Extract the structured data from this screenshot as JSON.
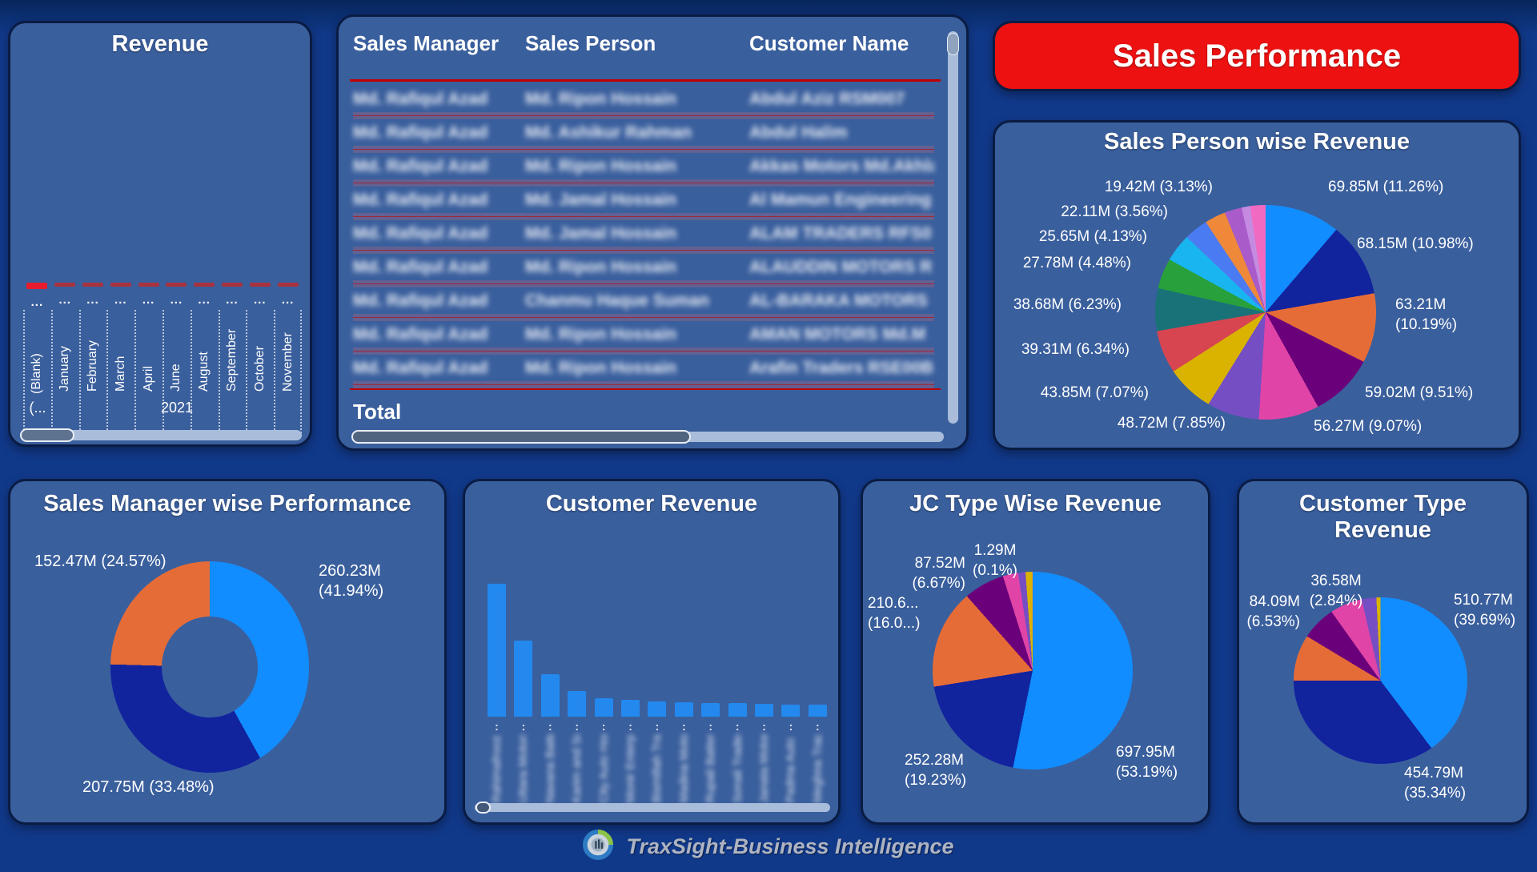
{
  "banner": {
    "title": "Sales Performance"
  },
  "footer": {
    "brand": "TraxSight-Business Intelligence"
  },
  "revenue_panel": {
    "title": "Revenue",
    "year_group_truncated": "(...",
    "year_label": "2021"
  },
  "sales_table": {
    "headers": [
      "Sales Manager",
      "Sales Person",
      "Customer Name"
    ],
    "total_label": "Total",
    "privacy_blurred": true,
    "rows": [
      [
        "Md. Rafiqul Azad",
        "Md. Ripon Hossain",
        "Abdul Aziz RSM007"
      ],
      [
        "Md. Rafiqul Azad",
        "Md. Ashikur Rahman",
        "Abdul Halim"
      ],
      [
        "Md. Rafiqul Azad",
        "Md. Ripon Hossain",
        "Akkas Motors Md.Akhla"
      ],
      [
        "Md. Rafiqul Azad",
        "Md. Jamal Hossain",
        "Al Mamun Engineering"
      ],
      [
        "Md. Rafiqul Azad",
        "Md. Jamal Hossain",
        "ALAM TRADERS RFS0"
      ],
      [
        "Md. Rafiqul Azad",
        "Md. Ripon Hossain",
        "ALAUDDIN MOTORS R"
      ],
      [
        "Md. Rafiqul Azad",
        "Chanmu Haque Suman",
        "AL-BARAKA MOTORS"
      ],
      [
        "Md. Rafiqul Azad",
        "Md. Ripon Hossain",
        "AMAN MOTORS Md.M"
      ],
      [
        "Md. Rafiqul Azad",
        "Md. Ripon Hossain",
        "Arafin Traders RSE00B"
      ]
    ]
  },
  "colors": {
    "page_bg": "#11398A",
    "panel_bg": "#3A5F9D",
    "panel_border": "#0A1C44",
    "banner_red": "#EE1111",
    "bar_blue": "#2389EF",
    "target_red": "#E81C2C",
    "target_red_dim": "#A8333E",
    "scroll_track": "#A9BDDB",
    "scroll_thumb": "#5E7390",
    "table_band": "#6A6191",
    "table_red_line": "#C00000"
  },
  "chart_data": {
    "revenue_by_month": {
      "type": "bar",
      "title": "Revenue",
      "categories": [
        "(Blank)",
        "January",
        "February",
        "March",
        "April",
        "June",
        "August",
        "September",
        "October",
        "November"
      ],
      "values_display": [
        "...",
        "...",
        "...",
        "...",
        "...",
        "...",
        "...",
        "...",
        "...",
        "..."
      ],
      "year": "2021",
      "note": "values truncated; red target dashes shown per month"
    },
    "sales_person_pie": {
      "type": "pie",
      "title": "Sales Person wise Revenue",
      "slices": [
        {
          "pct": 11.26,
          "color": "#118DFF",
          "label_lines": [
            "69.85M (11.26%)"
          ]
        },
        {
          "pct": 10.98,
          "color": "#12239E",
          "label_lines": [
            "68.15M (10.98%)"
          ]
        },
        {
          "pct": 10.19,
          "color": "#E66C37",
          "label_lines": [
            "63.21M",
            "(10.19%)"
          ]
        },
        {
          "pct": 9.51,
          "color": "#6B007B",
          "label_lines": [
            "59.02M (9.51%)"
          ]
        },
        {
          "pct": 9.07,
          "color": "#E044A7",
          "label_lines": [
            "56.27M (9.07%)"
          ]
        },
        {
          "pct": 7.85,
          "color": "#744EC2",
          "label_lines": [
            "48.72M (7.85%)"
          ]
        },
        {
          "pct": 7.07,
          "color": "#D9B300",
          "label_lines": [
            "43.85M (7.07%)"
          ]
        },
        {
          "pct": 6.34,
          "color": "#D64550",
          "label_lines": [
            "39.31M (6.34%)"
          ]
        },
        {
          "pct": 6.23,
          "color": "#197278",
          "label_lines": [
            "38.68M (6.23%)"
          ]
        },
        {
          "pct": 4.48,
          "color": "#28A03C",
          "label_lines": [
            "27.78M (4.48%)"
          ]
        },
        {
          "pct": 4.13,
          "color": "#19B5F0",
          "label_lines": [
            "25.65M (4.13%)"
          ]
        },
        {
          "pct": 3.56,
          "color": "#4A7BF2",
          "label_lines": [
            "22.11M (3.56%)"
          ]
        },
        {
          "pct": 3.13,
          "color": "#F0883A",
          "label_lines": [
            "19.42M (3.13%)"
          ]
        },
        {
          "pct": 2.6,
          "color": "#A85BC9",
          "label_lines": []
        },
        {
          "pct": 1.3,
          "color": "#C48BE0",
          "label_lines": []
        },
        {
          "pct": 2.3,
          "color": "#F06AC1",
          "label_lines": []
        }
      ]
    },
    "manager_donut": {
      "type": "pie",
      "subtype": "donut",
      "title": "Sales Manager wise Performance",
      "slices": [
        {
          "pct": 41.94,
          "color": "#118DFF",
          "label_lines": [
            "260.23M",
            "(41.94%)"
          ]
        },
        {
          "pct": 33.48,
          "color": "#12239E",
          "label_lines": [
            "207.75M (33.48%)"
          ]
        },
        {
          "pct": 24.57,
          "color": "#E66C37",
          "label_lines": [
            "152.47M (24.57%)"
          ]
        }
      ]
    },
    "customer_revenue_bar": {
      "type": "bar",
      "title": "Customer Revenue",
      "x_labels_blurred": true,
      "values_pct": [
        100,
        57,
        32,
        19,
        14,
        12.5,
        11.5,
        11,
        10.5,
        10,
        9.5,
        9,
        9
      ],
      "x_labels": [
        "Rahimafrooz Dist",
        "Uttara Motors",
        "Navana Batteries",
        "Karim and Sons",
        "City Auto House",
        "Monir Enterprise",
        "Bismillah Traders",
        "Madina Motors",
        "Rupali Battery",
        "Sonali Traders",
        "Janata Motors",
        "Padma Auto",
        "Meghna Traders"
      ]
    },
    "jc_type_pie": {
      "type": "pie",
      "title": "JC Type Wise Revenue",
      "slices": [
        {
          "pct": 53.19,
          "color": "#118DFF",
          "label_lines": [
            "697.95M",
            "(53.19%)"
          ]
        },
        {
          "pct": 19.23,
          "color": "#12239E",
          "label_lines": [
            "252.28M",
            "(19.23%)"
          ]
        },
        {
          "pct": 16.05,
          "color": "#E66C37",
          "label_lines": [
            "210.6...",
            "(16.0...)"
          ]
        },
        {
          "pct": 6.67,
          "color": "#6B007B",
          "label_lines": [
            "87.52M",
            "(6.67%)"
          ]
        },
        {
          "pct": 2.5,
          "color": "#E044A7",
          "label_lines": []
        },
        {
          "pct": 1.2,
          "color": "#744EC2",
          "label_lines": []
        },
        {
          "pct": 1.06,
          "color": "#D9B300",
          "label_lines": []
        },
        {
          "pct": 0.1,
          "color": "#F0883A",
          "label_lines": [
            "1.29M",
            "(0.1%)"
          ]
        }
      ]
    },
    "customer_type_pie": {
      "type": "pie",
      "title": "Customer Type Revenue",
      "slices": [
        {
          "pct": 39.69,
          "color": "#118DFF",
          "label_lines": [
            "510.77M",
            "(39.69%)"
          ]
        },
        {
          "pct": 35.34,
          "color": "#12239E",
          "label_lines": [
            "454.79M",
            "(35.34%)"
          ]
        },
        {
          "pct": 8.6,
          "color": "#E66C37",
          "label_lines": []
        },
        {
          "pct": 6.53,
          "color": "#6B007B",
          "label_lines": [
            "84.09M",
            "(6.53%)"
          ]
        },
        {
          "pct": 6.2,
          "color": "#E044A7",
          "label_lines": []
        },
        {
          "pct": 2.84,
          "color": "#744EC2",
          "label_lines": [
            "36.58M",
            "(2.84%)"
          ]
        },
        {
          "pct": 0.8,
          "color": "#D9B300",
          "label_lines": []
        }
      ]
    }
  }
}
